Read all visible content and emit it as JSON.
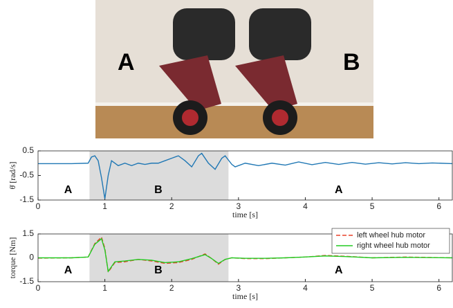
{
  "photo": {
    "labels": [
      "A",
      "B"
    ]
  },
  "chart_data": [
    {
      "type": "line",
      "ylabel": "θ̇ [rad/s]",
      "xlabel": "time [s]",
      "xlim": [
        0,
        6.2
      ],
      "xticks": [
        0,
        1,
        2,
        3,
        4,
        5,
        6
      ],
      "ylim": [
        -1.5,
        0.5
      ],
      "yticks": [
        -1.5,
        -0.5,
        0.5
      ],
      "shaded": [
        0.77,
        2.85
      ],
      "shade_color": "#dcdcdc",
      "annotations": [
        {
          "text": "A",
          "x": 0.45,
          "y": -1.1
        },
        {
          "text": "B",
          "x": 1.8,
          "y": -1.1
        },
        {
          "text": "A",
          "x": 4.5,
          "y": -1.1
        }
      ],
      "x": [
        0,
        0.5,
        0.75,
        0.8,
        0.85,
        0.9,
        0.95,
        1.0,
        1.05,
        1.1,
        1.2,
        1.3,
        1.4,
        1.5,
        1.6,
        1.7,
        1.8,
        1.9,
        2.0,
        2.1,
        2.2,
        2.3,
        2.4,
        2.45,
        2.55,
        2.65,
        2.75,
        2.8,
        2.9,
        2.95,
        3.1,
        3.3,
        3.5,
        3.7,
        3.9,
        4.1,
        4.3,
        4.5,
        4.7,
        4.9,
        5.1,
        5.3,
        5.5,
        5.7,
        5.9,
        6.2
      ],
      "series": [
        {
          "color": "#1f77b4",
          "style": "solid",
          "values": [
            -0.02,
            -0.02,
            0.0,
            0.25,
            0.3,
            0.1,
            -0.6,
            -1.45,
            -0.5,
            0.1,
            -0.1,
            0.0,
            -0.1,
            0.0,
            -0.05,
            0.0,
            0.0,
            0.1,
            0.2,
            0.3,
            0.1,
            -0.15,
            0.3,
            0.4,
            0.0,
            -0.25,
            0.2,
            0.3,
            -0.05,
            -0.15,
            0.0,
            -0.1,
            0.0,
            -0.08,
            0.05,
            -0.06,
            0.03,
            -0.05,
            0.03,
            -0.04,
            0.02,
            -0.03,
            0.02,
            -0.02,
            0.01,
            -0.02
          ]
        }
      ]
    },
    {
      "type": "line",
      "ylabel": "torque [Nm]",
      "xlabel": "time [s]",
      "xlim": [
        0,
        6.2
      ],
      "xticks": [
        0,
        1,
        2,
        3,
        4,
        5,
        6
      ],
      "ylim": [
        -1.5,
        1.5
      ],
      "yticks": [
        -1.5,
        0,
        1.5
      ],
      "shaded": [
        0.77,
        2.85
      ],
      "shade_color": "#dcdcdc",
      "legend": "upper right",
      "annotations": [
        {
          "text": "A",
          "x": 0.45,
          "y": -0.8
        },
        {
          "text": "B",
          "x": 1.8,
          "y": -0.8
        },
        {
          "text": "A",
          "x": 4.5,
          "y": -0.8
        }
      ],
      "x": [
        0,
        0.5,
        0.75,
        0.85,
        0.95,
        1.0,
        1.05,
        1.15,
        1.3,
        1.5,
        1.7,
        1.9,
        2.1,
        2.3,
        2.5,
        2.6,
        2.7,
        2.8,
        2.9,
        3.1,
        3.4,
        3.7,
        4.0,
        4.3,
        4.6,
        5.0,
        5.5,
        6.2
      ],
      "series": [
        {
          "name": "left wheel hub motor",
          "color": "#e8402a",
          "style": "dashed",
          "values": [
            -0.02,
            0.0,
            0.05,
            0.9,
            1.3,
            0.6,
            -0.9,
            -0.3,
            -0.25,
            -0.1,
            -0.2,
            -0.35,
            -0.3,
            -0.1,
            0.25,
            -0.05,
            -0.4,
            -0.1,
            0.0,
            -0.05,
            -0.05,
            0.0,
            0.05,
            0.15,
            0.1,
            0.0,
            0.05,
            0.0
          ]
        },
        {
          "name": "right wheel hub motor",
          "color": "#22cc22",
          "style": "solid",
          "values": [
            0.0,
            0.0,
            0.05,
            0.85,
            1.2,
            0.5,
            -0.85,
            -0.25,
            -0.2,
            -0.1,
            -0.15,
            -0.3,
            -0.25,
            -0.05,
            0.2,
            -0.05,
            -0.35,
            -0.1,
            0.0,
            -0.03,
            -0.03,
            0.0,
            0.05,
            0.12,
            0.08,
            0.0,
            0.03,
            0.0
          ]
        }
      ]
    }
  ]
}
